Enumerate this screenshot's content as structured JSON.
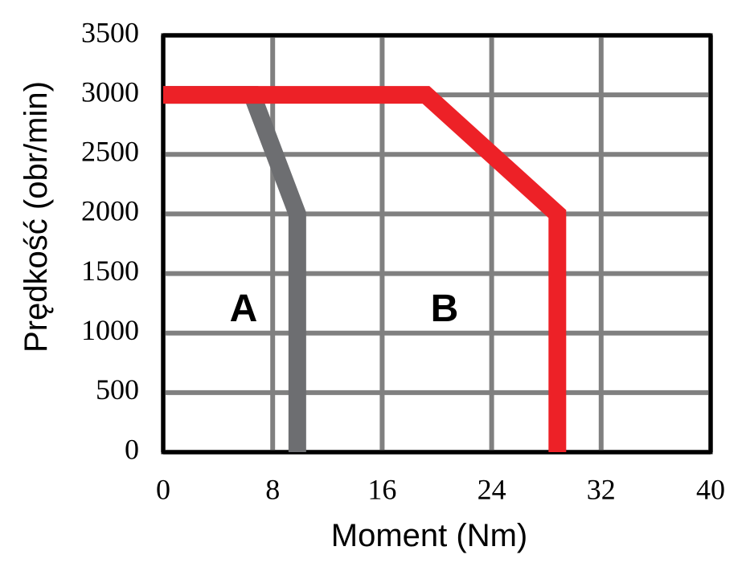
{
  "chart_data": {
    "type": "line",
    "x_label": "Moment (Nm)",
    "y_label": "Prędkość (obr/min)",
    "xlim": [
      0,
      40
    ],
    "xticks": [
      0,
      8,
      16,
      24,
      32,
      40
    ],
    "ylim": [
      0,
      3500
    ],
    "yticks": [
      0,
      500,
      1000,
      1500,
      2000,
      2500,
      3000,
      3500
    ],
    "grid": true,
    "series": [
      {
        "name": "A",
        "color": "#6d6e71",
        "x": [
          0,
          6.5,
          9.8,
          9.8
        ],
        "values": [
          3000,
          3000,
          2000,
          0
        ]
      },
      {
        "name": "B",
        "color": "#ed2127",
        "x": [
          0,
          19.2,
          28.8,
          28.8
        ],
        "values": [
          3000,
          3000,
          2000,
          0
        ]
      }
    ]
  }
}
